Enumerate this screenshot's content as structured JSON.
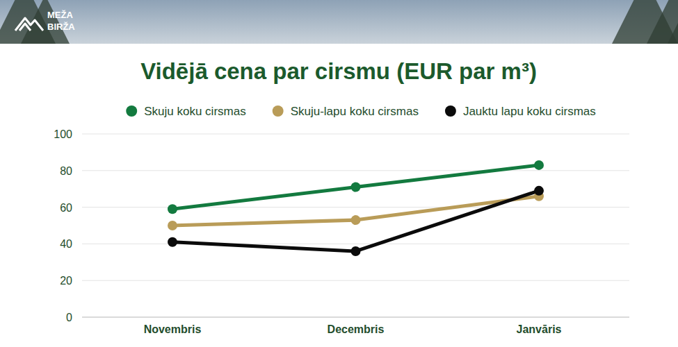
{
  "logo_lines": [
    "MEŽA",
    "BIRŽA"
  ],
  "chart_data": {
    "type": "line",
    "title": "Vidējā cena par cirsmu (EUR par m³)",
    "categories": [
      "Novembris",
      "Decembris",
      "Janvāris"
    ],
    "series": [
      {
        "name": "Skuju koku cirsmas",
        "color": "#137a3f",
        "marker": "circle",
        "values": [
          59,
          71,
          83
        ]
      },
      {
        "name": "Skuju-lapu koku cirsmas",
        "color": "#b99c58",
        "marker": "circle",
        "values": [
          50,
          53,
          66
        ]
      },
      {
        "name": "Jauktu lapu koku cirsmas",
        "color": "#0b0b0b",
        "marker": "circle",
        "values": [
          41,
          36,
          69
        ]
      }
    ],
    "ylim": [
      0,
      100
    ],
    "yticks": [
      0,
      20,
      40,
      60,
      80,
      100
    ],
    "grid": true,
    "legend": "top"
  }
}
